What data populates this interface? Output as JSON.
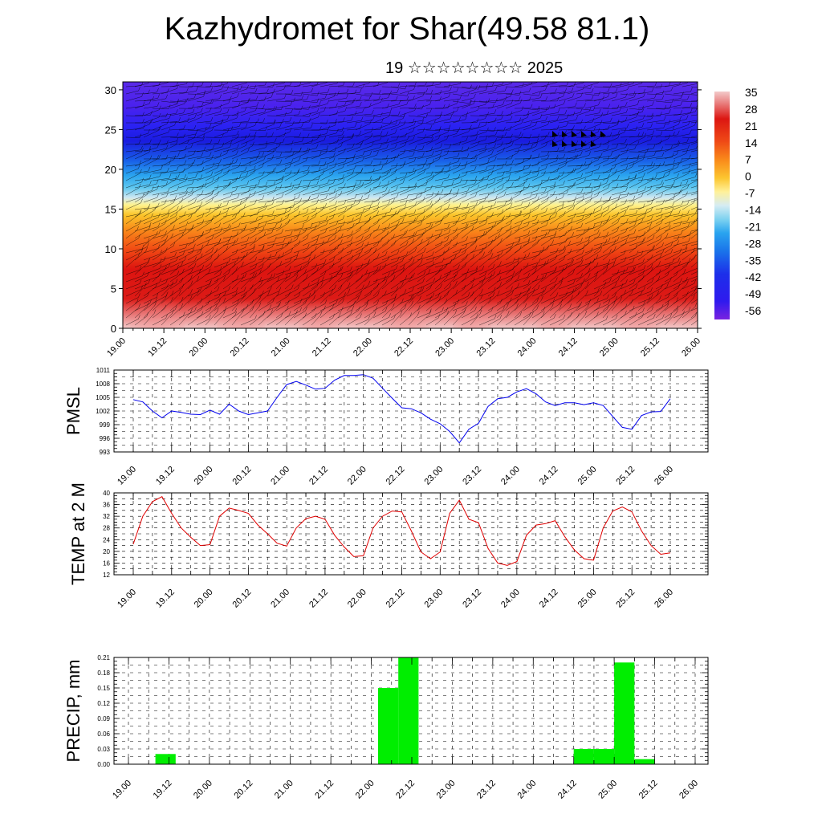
{
  "title": "Kazhydromet for Shar(49.58 81.1)",
  "subtitle": "19 ☆☆☆☆☆☆☆☆ 2025",
  "colors": {
    "pressure_line": "#0000ee",
    "temp_line": "#e00000",
    "precip_bar": "#00ee00",
    "axis": "#000000"
  },
  "chart_data": [
    {
      "id": "cross_section",
      "type": "heatmap",
      "xtick_labels": [
        "19.00",
        "19.12",
        "20.00",
        "20.12",
        "21.00",
        "21.12",
        "22.00",
        "22.12",
        "23.00",
        "23.12",
        "24.00",
        "24.12",
        "25.00",
        "25.12",
        "26.00"
      ],
      "ytick_labels": [
        "0",
        "5",
        "10",
        "15",
        "20",
        "25",
        "30"
      ],
      "yticks": [
        0,
        5,
        10,
        15,
        20,
        25,
        30
      ],
      "ylim": [
        0,
        31
      ],
      "colorbar_labels": [
        "35",
        "28",
        "21",
        "14",
        "7",
        "0",
        "-7",
        "-14",
        "-21",
        "-28",
        "-35",
        "-42",
        "-49",
        "-56"
      ],
      "colorbar_values": [
        35,
        28,
        21,
        14,
        7,
        0,
        -7,
        -14,
        -21,
        -28,
        -35,
        -42,
        -49,
        -56
      ],
      "overlay": "wind barbs"
    },
    {
      "id": "pmsl",
      "type": "line",
      "ylabel": "PMSL",
      "xtick_labels": [
        "19.00",
        "19.12",
        "20.00",
        "20.12",
        "21.00",
        "21.12",
        "22.00",
        "22.12",
        "23.00",
        "23.12",
        "24.00",
        "24.12",
        "25.00",
        "25.12",
        "26.00"
      ],
      "ytick_labels": [
        "993",
        "996",
        "999",
        "1002",
        "1005",
        "1008",
        "1011"
      ],
      "yticks": [
        993,
        996,
        999,
        1002,
        1005,
        1008,
        1011
      ],
      "ylim": [
        993,
        1011
      ],
      "grid": true,
      "series": [
        {
          "values": [
            1004.5,
            1004,
            1002,
            1000.5,
            1002,
            1001.7,
            1001.3,
            1001.2,
            1002.2,
            1001.3,
            1003.5,
            1002,
            1001.2,
            1001.6,
            1002,
            1005,
            1007.8,
            1008.5,
            1007.7,
            1006.8,
            1007,
            1008.8,
            1009.8,
            1009.8,
            1010,
            1009.2,
            1007,
            1004.8,
            1002.7,
            1002.5,
            1001.6,
            1000.2,
            999.2,
            997.5,
            995,
            998,
            999.3,
            1003,
            1004.7,
            1005,
            1006.2,
            1006.9,
            1005.8,
            1004,
            1003.2,
            1003.8,
            1003.8,
            1003.4,
            1003.8,
            1003.2,
            1000.8,
            998.4,
            998,
            1001,
            1001.8,
            1001.9,
            1004.7
          ]
        }
      ]
    },
    {
      "id": "temp2m",
      "type": "line",
      "ylabel": "TEMP at 2 M",
      "xtick_labels": [
        "19.00",
        "19.12",
        "20.00",
        "20.12",
        "21.00",
        "21.12",
        "22.00",
        "22.12",
        "23.00",
        "23.12",
        "24.00",
        "24.12",
        "25.00",
        "25.12",
        "26.00"
      ],
      "ytick_labels": [
        "12",
        "16",
        "20",
        "24",
        "28",
        "32",
        "36",
        "40"
      ],
      "yticks": [
        12,
        16,
        20,
        24,
        28,
        32,
        36,
        40
      ],
      "ylim": [
        12,
        40
      ],
      "grid": true,
      "series": [
        {
          "values": [
            22.5,
            32,
            37,
            38.7,
            33,
            28,
            24.8,
            22,
            22.3,
            32,
            34.8,
            34,
            33,
            29,
            26,
            22.8,
            21.8,
            28,
            31.2,
            32,
            31,
            25.5,
            21.5,
            18.2,
            18.5,
            28,
            32,
            33.8,
            33.5,
            27,
            19.8,
            17.5,
            19.8,
            33,
            37.5,
            31,
            29.8,
            21,
            16,
            15.2,
            16.5,
            25.5,
            29,
            29.5,
            30.5,
            25,
            20.5,
            17.5,
            17,
            28,
            33.8,
            35.2,
            33.5,
            27,
            22,
            19,
            19.5
          ]
        }
      ]
    },
    {
      "id": "precip",
      "type": "bar",
      "ylabel": "PRECIP, mm",
      "xtick_labels": [
        "19.00",
        "19.12",
        "20.00",
        "20.12",
        "21.00",
        "21.12",
        "22.00",
        "22.12",
        "23.00",
        "23.12",
        "24.00",
        "24.12",
        "25.00",
        "25.12",
        "26.00"
      ],
      "ytick_labels": [
        "0.00",
        "0.03",
        "0.06",
        "0.09",
        "0.12",
        "0.15",
        "0.18",
        "0.21"
      ],
      "yticks": [
        0,
        0.03,
        0.06,
        0.09,
        0.12,
        0.15,
        0.18,
        0.21
      ],
      "ylim": [
        0,
        0.21
      ],
      "grid": true,
      "bars": [
        {
          "time": 4,
          "value": 0.02
        },
        {
          "time": 37,
          "value": 0.15
        },
        {
          "time": 40,
          "value": 0.21
        },
        {
          "time": 66,
          "value": 0.03
        },
        {
          "time": 69,
          "value": 0.03
        },
        {
          "time": 72,
          "value": 0.2
        },
        {
          "time": 75,
          "value": 0.01
        }
      ]
    }
  ]
}
